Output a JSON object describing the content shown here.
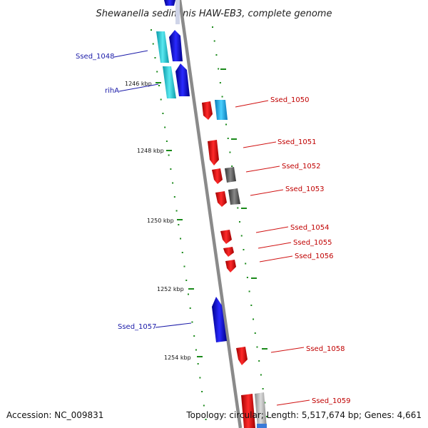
{
  "title": "Shewanella sediminis HAW-EB3, complete genome",
  "footer": {
    "accession": "Accession: NC_009831",
    "topology": "Topology: circular; Length: 5,517,674 bp; Genes: 4,661"
  },
  "scale_labels": [
    "1246 kbp",
    "1248 kbp",
    "1250 kbp",
    "1252 kbp",
    "1254 kbp"
  ],
  "gene_labels": {
    "ssed_1048": "Ssed_1048",
    "riha": "rihA",
    "ssed_1050": "Ssed_1050",
    "ssed_1051": "Ssed_1051",
    "ssed_1052": "Ssed_1052",
    "ssed_1053": "Ssed_1053",
    "ssed_1054": "Ssed_1054",
    "ssed_1055": "Ssed_1055",
    "ssed_1056": "Ssed_1056",
    "ssed_1057": "Ssed_1057",
    "ssed_1058": "Ssed_1058",
    "ssed_1059": "Ssed_1059"
  },
  "colors": {
    "reverse_strand": "#1010e0",
    "forward_strand": "#e60000",
    "cds_other": "#20c8d8",
    "gray_feature": "#666666",
    "tick": "#1a8a1a",
    "axis": "#888888"
  }
}
